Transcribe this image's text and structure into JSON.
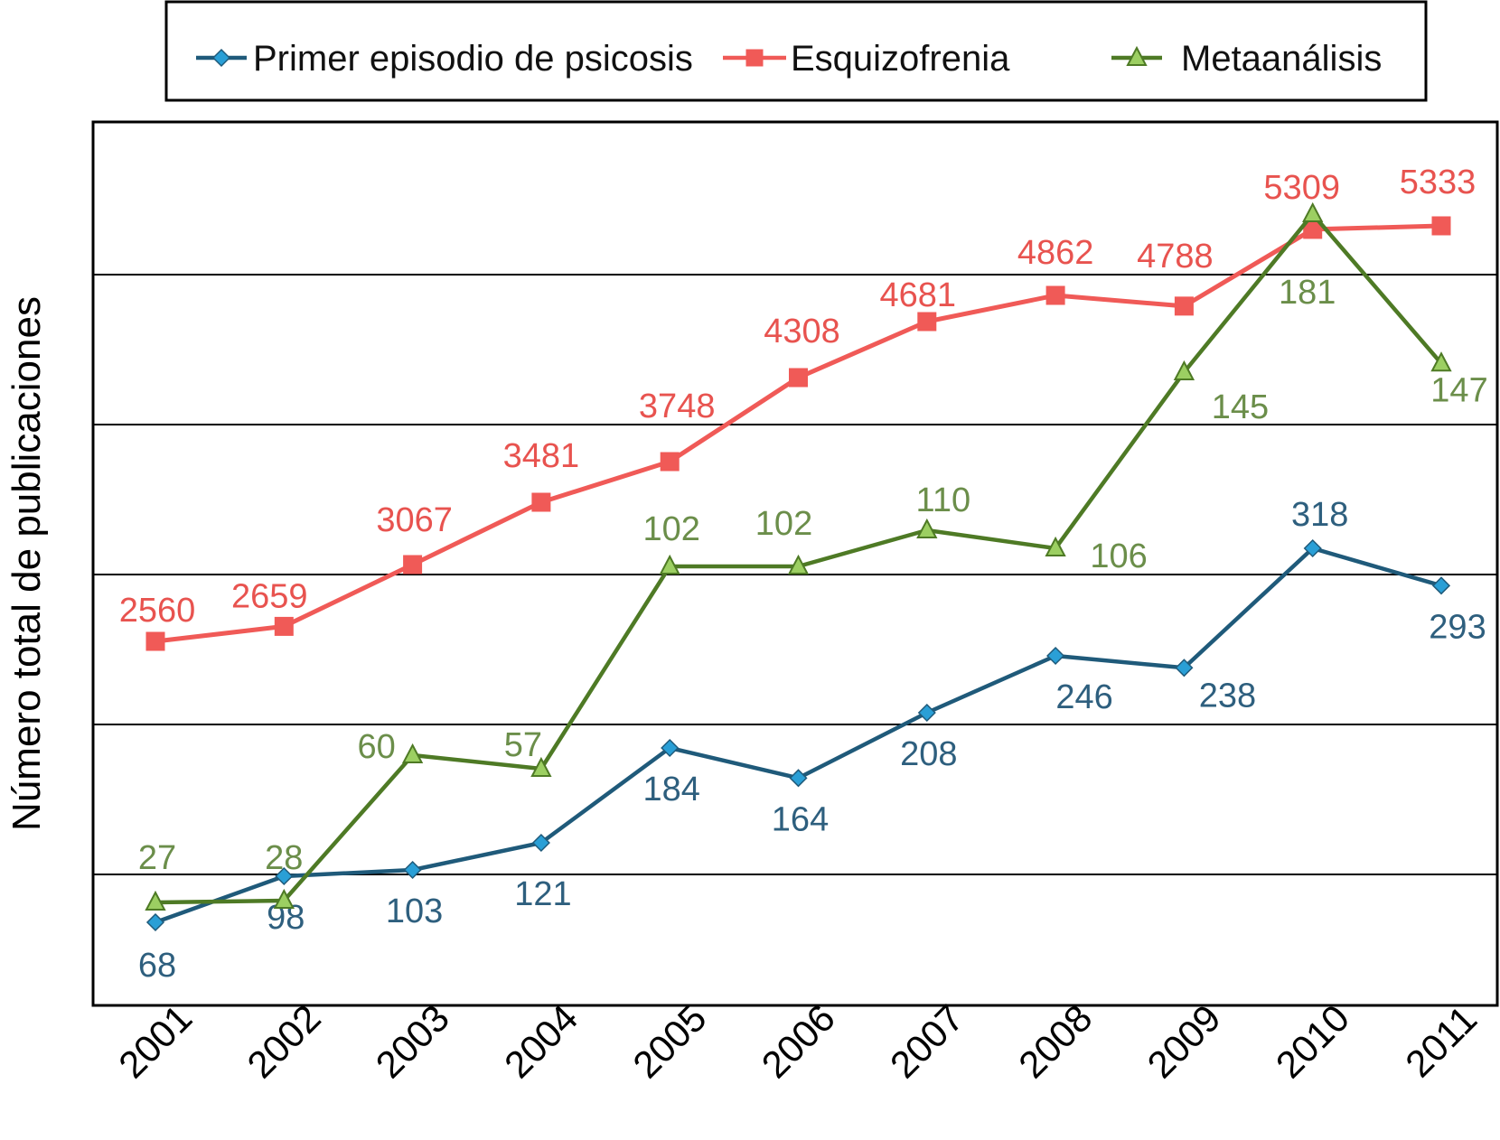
{
  "chart_data": {
    "type": "line",
    "title": "",
    "xlabel": "",
    "ylabel": "Número total de publicaciones",
    "categories": [
      "2001",
      "2002",
      "2003",
      "2004",
      "2005",
      "2006",
      "2007",
      "2008",
      "2009",
      "2010",
      "2011"
    ],
    "legend_position": "top",
    "grid": true,
    "series": [
      {
        "name": "Primer episodio de psicosis",
        "color": "#1f5a7a",
        "marker_color": "#2a9fd6",
        "label_color": "#2e5f7e",
        "marker": "diamond",
        "values": [
          68,
          98,
          103,
          121,
          184,
          164,
          208,
          246,
          238,
          318,
          293
        ],
        "labels": [
          "68",
          "98",
          "103",
          "121",
          "184",
          "164",
          "208",
          "246",
          "238",
          "318",
          "293"
        ]
      },
      {
        "name": "Esquizofrenia",
        "color": "#f05a57",
        "marker_color": "#f05a57",
        "label_color": "#e8534f",
        "marker": "square",
        "values": [
          2560,
          2659,
          3067,
          3481,
          3748,
          4308,
          4681,
          4862,
          4788,
          5309,
          5333
        ],
        "labels": [
          "2560",
          "2659",
          "3067",
          "3481",
          "3748",
          "4308",
          "4681",
          "4862",
          "4788",
          "5309",
          "5333"
        ]
      },
      {
        "name": "Metaanálisis",
        "color": "#4e7a25",
        "marker_color": "#9ccf62",
        "label_color": "#6b8e4a",
        "marker": "triangle",
        "values": [
          27,
          28,
          60,
          57,
          102,
          102,
          110,
          106,
          145,
          181,
          147
        ],
        "labels": [
          "27",
          "28",
          "60",
          "57",
          "102",
          "102",
          "110",
          "106",
          "145",
          "181",
          "147"
        ]
      }
    ]
  }
}
